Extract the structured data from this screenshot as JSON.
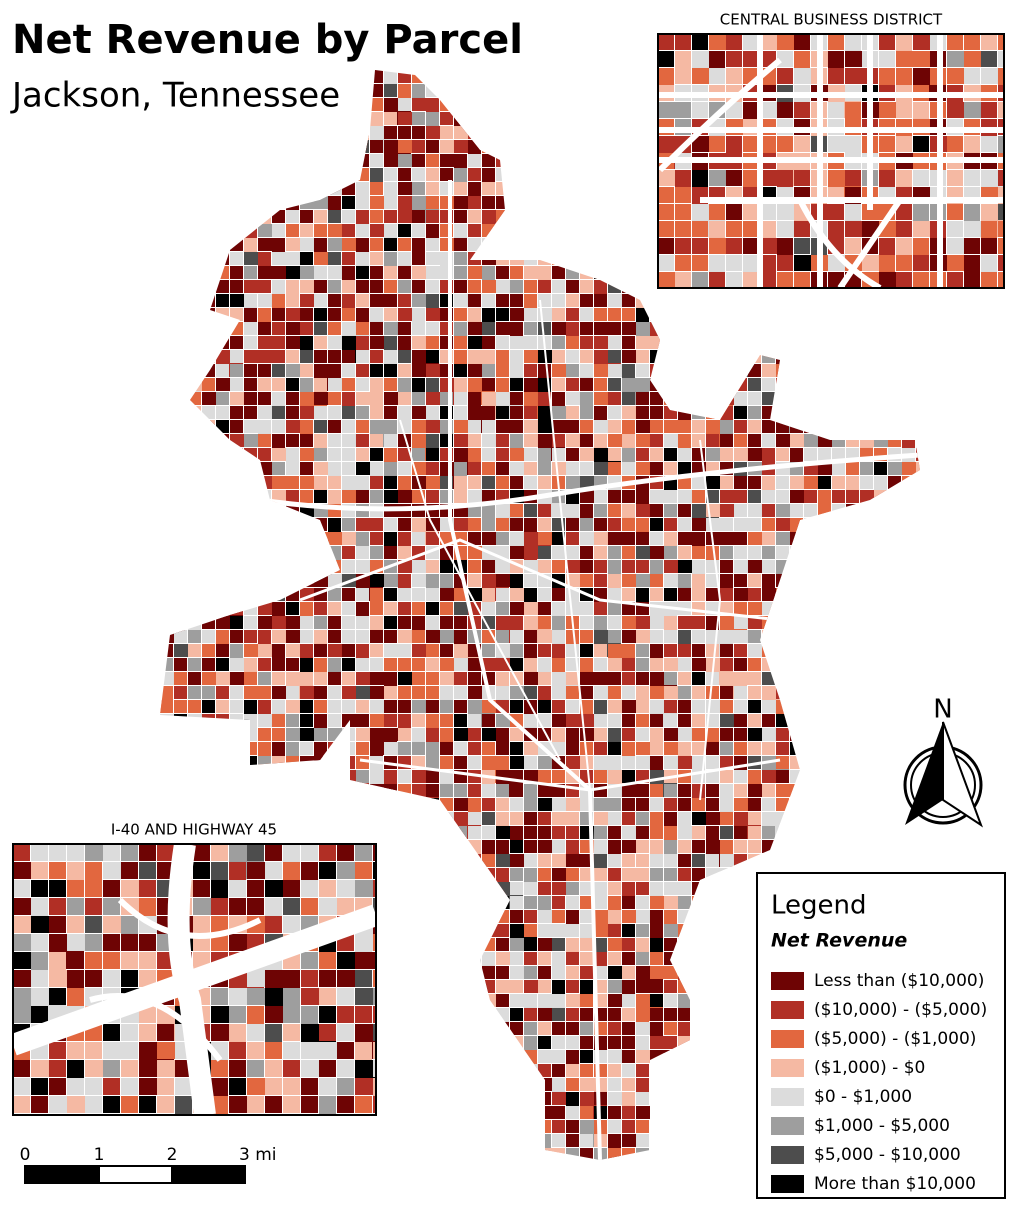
{
  "title": "Net Revenue by Parcel",
  "subtitle": "Jackson, Tennessee",
  "insets": [
    {
      "title": "CENTRAL BUSINESS DISTRICT"
    },
    {
      "title": "I-40 AND HIGHWAY 45"
    }
  ],
  "north_arrow": {
    "label": "N"
  },
  "scale_bar": {
    "labels": [
      "0",
      "1",
      "2",
      "3 mi"
    ]
  },
  "legend": {
    "title": "Legend",
    "subtitle": "Net Revenue",
    "items": [
      {
        "label": "Less than ($10,000)",
        "color": "#6e0404"
      },
      {
        "label": "($10,000) - ($5,000)",
        "color": "#b12f25"
      },
      {
        "label": "($5,000) - ($1,000)",
        "color": "#e2673f"
      },
      {
        "label": "($1,000) - $0",
        "color": "#f5b9a3"
      },
      {
        "label": "$0 - $1,000",
        "color": "#dcdcdc"
      },
      {
        "label": "$1,000 - $5,000",
        "color": "#9e9e9e"
      },
      {
        "label": "$5,000 - $10,000",
        "color": "#4d4d4d"
      },
      {
        "label": "More than $10,000",
        "color": "#000000"
      }
    ]
  }
}
